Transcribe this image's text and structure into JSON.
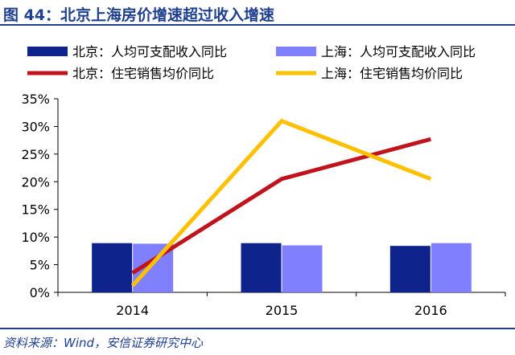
{
  "title": "图 44：北京上海房价增速超过收入增速",
  "source": "资料来源：Wind，安信证券研究中心",
  "chart_data": {
    "type": "bar+line",
    "categories": [
      "2014",
      "2015",
      "2016"
    ],
    "ylim": [
      0,
      35
    ],
    "yticks": [
      0,
      5,
      10,
      15,
      20,
      25,
      30,
      35
    ],
    "ytick_labels": [
      "0%",
      "5%",
      "10%",
      "15%",
      "20%",
      "25%",
      "30%",
      "35%"
    ],
    "grid": false,
    "legend_position": "top",
    "bars": [
      {
        "name": "北京：人均可支配收入同比",
        "color": "#0f238c",
        "values": [
          8.9,
          8.9,
          8.4
        ]
      },
      {
        "name": "上海：人均可支配收入同比",
        "color": "#8080ff",
        "values": [
          8.8,
          8.5,
          8.9
        ]
      }
    ],
    "lines": [
      {
        "name": "北京：住宅销售均价同比",
        "color": "#c0141c",
        "values": [
          3.5,
          20.5,
          27.7
        ]
      },
      {
        "name": "上海：住宅销售均价同比",
        "color": "#ffc000",
        "values": [
          1.2,
          31.0,
          20.5
        ]
      }
    ]
  }
}
